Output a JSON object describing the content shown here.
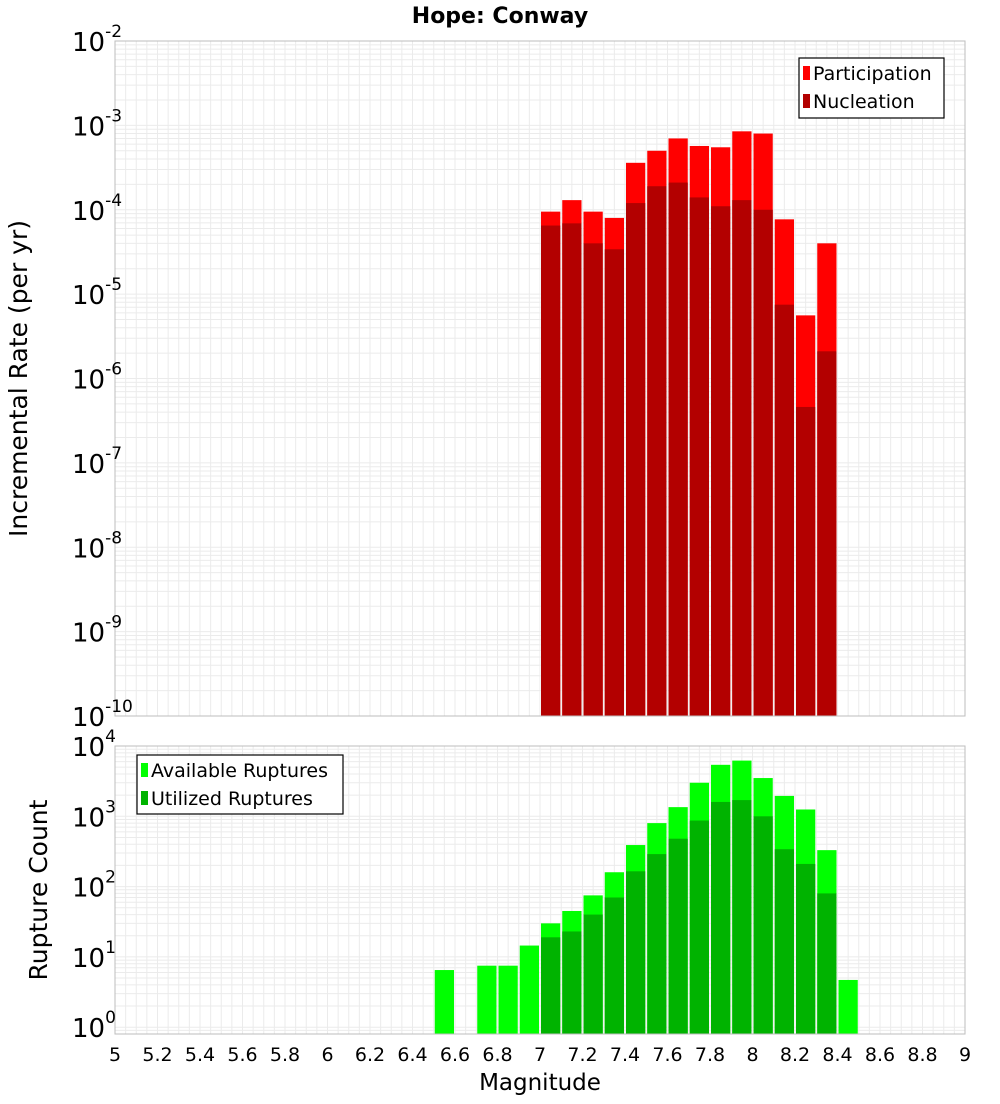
{
  "chart_data": [
    {
      "type": "bar",
      "title": "Hope: Conway",
      "xlabel": "",
      "ylabel": "Incremental Rate (per yr)",
      "y_scale": "log",
      "ylim": [
        1e-10,
        0.01
      ],
      "xlim": [
        5,
        9
      ],
      "y_ticks": [
        {
          "base": "10",
          "exp": "-10"
        },
        {
          "base": "10",
          "exp": "-9"
        },
        {
          "base": "10",
          "exp": "-8"
        },
        {
          "base": "10",
          "exp": "-7"
        },
        {
          "base": "10",
          "exp": "-6"
        },
        {
          "base": "10",
          "exp": "-5"
        },
        {
          "base": "10",
          "exp": "-4"
        },
        {
          "base": "10",
          "exp": "-3"
        },
        {
          "base": "10",
          "exp": "-2"
        }
      ],
      "grid": true,
      "legend_position": "top-right",
      "x": [
        7.05,
        7.15,
        7.25,
        7.35,
        7.45,
        7.55,
        7.65,
        7.75,
        7.85,
        7.95,
        8.05,
        8.15,
        8.25,
        8.35
      ],
      "series": [
        {
          "name": "Participation",
          "color": "#ff0000",
          "values": [
            9.5e-05,
            0.00013,
            9.5e-05,
            8e-05,
            0.00036,
            0.0005,
            0.0007,
            0.00057,
            0.00055,
            0.00085,
            0.0008,
            7.7e-05,
            5.6e-06,
            4e-05
          ]
        },
        {
          "name": "Nucleation",
          "color": "#b30000",
          "values": [
            6.5e-05,
            6.9e-05,
            4e-05,
            3.4e-05,
            0.00012,
            0.00019,
            0.00021,
            0.00014,
            0.00011,
            0.00013,
            0.0001,
            7.5e-06,
            4.6e-07,
            2.1e-06
          ]
        }
      ]
    },
    {
      "type": "bar",
      "title": "",
      "xlabel": "Magnitude",
      "ylabel": "Rupture Count",
      "y_scale": "log",
      "ylim": [
        0.8,
        10000
      ],
      "xlim": [
        5,
        9
      ],
      "x_ticks": [
        "5",
        "5.2",
        "5.4",
        "5.6",
        "5.8",
        "6",
        "6.2",
        "6.4",
        "6.6",
        "6.8",
        "7",
        "7.2",
        "7.4",
        "7.6",
        "7.8",
        "8",
        "8.2",
        "8.4",
        "8.6",
        "8.8",
        "9"
      ],
      "y_ticks": [
        {
          "base": "10",
          "exp": "0"
        },
        {
          "base": "10",
          "exp": "1"
        },
        {
          "base": "10",
          "exp": "2"
        },
        {
          "base": "10",
          "exp": "3"
        },
        {
          "base": "10",
          "exp": "4"
        }
      ],
      "grid": true,
      "legend_position": "top-left",
      "x": [
        6.55,
        6.75,
        6.85,
        6.95,
        7.05,
        7.15,
        7.25,
        7.35,
        7.45,
        7.55,
        7.65,
        7.75,
        7.85,
        7.95,
        8.05,
        8.15,
        8.25,
        8.35,
        8.45
      ],
      "series": [
        {
          "name": "Available Ruptures",
          "color": "#00ff00",
          "values": [
            6.5,
            7.5,
            7.5,
            14.5,
            30,
            45,
            75,
            160,
            390,
            800,
            1350,
            3000,
            5400,
            6200,
            3500,
            1950,
            1250,
            330,
            4.7
          ]
        },
        {
          "name": "Utilized Ruptures",
          "color": "#00b300",
          "values": [
            null,
            null,
            null,
            null,
            19,
            23,
            40,
            70,
            165,
            290,
            480,
            870,
            1600,
            1700,
            1000,
            340,
            210,
            80,
            null
          ]
        }
      ]
    }
  ]
}
